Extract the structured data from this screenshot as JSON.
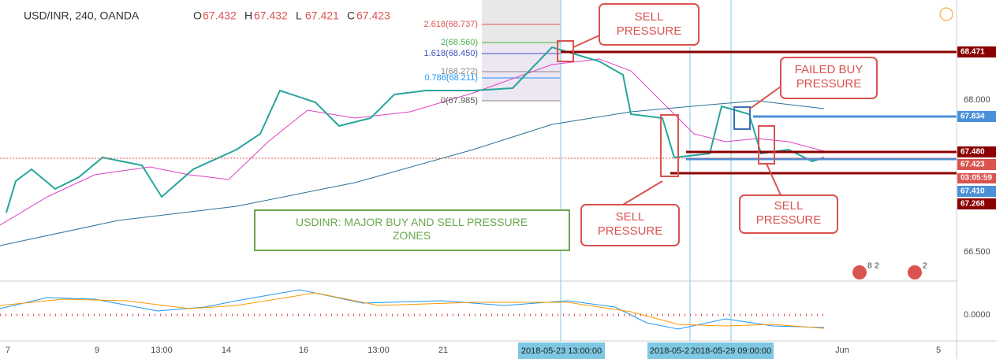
{
  "header": {
    "symbol": "USD/INR, 240, OANDA",
    "ohlc": [
      {
        "label": "O",
        "value": "67.432"
      },
      {
        "label": "H",
        "value": "67.432"
      },
      {
        "label": "L",
        "value": "67.421"
      },
      {
        "label": "C",
        "value": "67.423"
      }
    ]
  },
  "fib_levels": [
    "2.618(68.737)",
    "2(68.560)",
    "1.618(68.450)",
    "1(68.272)",
    "0.786(68.211)",
    "0(67.985)"
  ],
  "price_axis": {
    "ticks": [
      "68.000",
      "66.500"
    ],
    "indicator_tick": "0.0000",
    "tags": [
      "68.471",
      "67.834",
      "67.480",
      "67.423",
      "03:05:59",
      "67.410",
      "67.268"
    ]
  },
  "time_axis": {
    "ticks": [
      "7",
      "9",
      "13:00",
      "14",
      "16",
      "13:00",
      "21",
      "Jun",
      "5"
    ],
    "highlights": [
      "2018-05-23 13:00:00",
      "2018-05-2",
      "2018-05-29 09:00:00"
    ]
  },
  "annotations": {
    "sell_top": "SELL\nPRESSURE",
    "failed_buy": "FAILED BUY\nPRESSURE",
    "sell_bottom_left": "SELL\nPRESSURE",
    "sell_bottom_right": "SELL\nPRESSURE",
    "main_label": "USDINR: MAJOR BUY AND SELL PRESSURE\nZONES"
  },
  "badges": [
    "8",
    "2",
    "2"
  ]
}
